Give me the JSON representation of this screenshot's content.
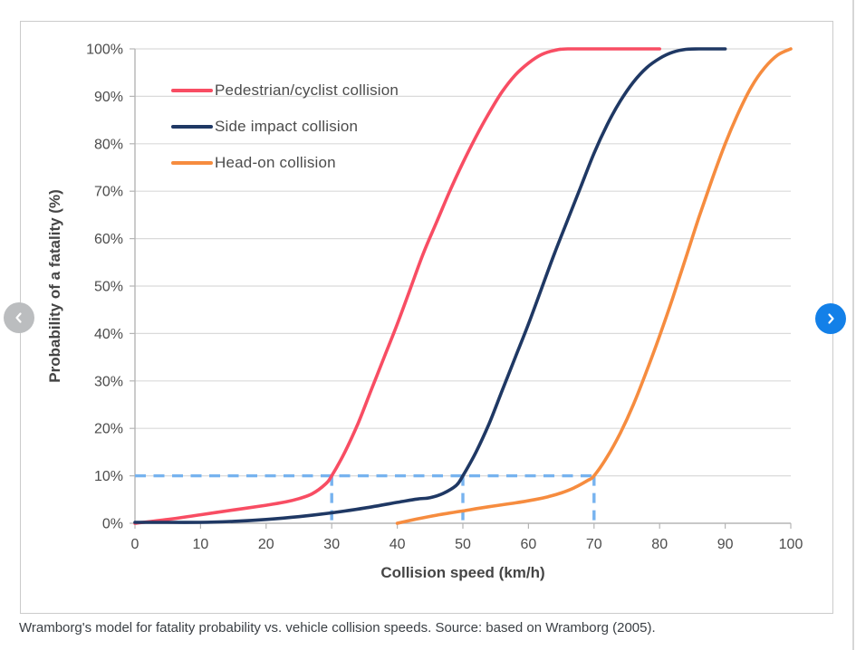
{
  "figure": {
    "caption": "Wramborg's model for fatality probability vs. vehicle collision speeds. Source: based on Wramborg (2005)."
  },
  "carousel": {
    "prev_icon": "chevron-left",
    "next_icon": "chevron-right",
    "prev_color": "#bbbdbf",
    "next_color": "#1380e8",
    "chevron_color": "#ffffff"
  },
  "palette": {
    "card_border": "#cbcbcb",
    "grid": "#dadada",
    "axis": "#b5b5b5",
    "tick_text": "#4c4c4c",
    "axis_title_text": "#454545",
    "guide_blue": "#77b3ef"
  },
  "chart_data": {
    "type": "line",
    "title": "",
    "xlabel": "Collision speed (km/h)",
    "ylabel": "Probability of a fatality (%)",
    "xlim": [
      0,
      100
    ],
    "ylim": [
      0,
      100
    ],
    "x_ticks": [
      0,
      10,
      20,
      30,
      40,
      50,
      60,
      70,
      80,
      90,
      100
    ],
    "x_tick_labels": [
      "0",
      "10",
      "20",
      "30",
      "40",
      "50",
      "60",
      "70",
      "80",
      "90",
      "100"
    ],
    "y_ticks": [
      0,
      10,
      20,
      30,
      40,
      50,
      60,
      70,
      80,
      90,
      100
    ],
    "y_tick_labels": [
      "0%",
      "10%",
      "20%",
      "30%",
      "40%",
      "50%",
      "60%",
      "70%",
      "80%",
      "90%",
      "100%"
    ],
    "grid": "horizontal",
    "legend_position": "inside-top-left",
    "series": [
      {
        "id": "pedestrian_cyclist",
        "name": "Pedestrian/cyclist collision",
        "color": "#f84d63",
        "points": [
          [
            0,
            0
          ],
          [
            5,
            0.8
          ],
          [
            10,
            1.8
          ],
          [
            15,
            2.8
          ],
          [
            20,
            3.8
          ],
          [
            23,
            4.5
          ],
          [
            25,
            5.2
          ],
          [
            27,
            6.2
          ],
          [
            29,
            8.2
          ],
          [
            30,
            10
          ],
          [
            32,
            15
          ],
          [
            34,
            21
          ],
          [
            36,
            28
          ],
          [
            38,
            35
          ],
          [
            40,
            42
          ],
          [
            42,
            49.5
          ],
          [
            44,
            57
          ],
          [
            46,
            63.5
          ],
          [
            48,
            70
          ],
          [
            50,
            76
          ],
          [
            52,
            81.5
          ],
          [
            54,
            86.5
          ],
          [
            56,
            91
          ],
          [
            58,
            94.5
          ],
          [
            60,
            97
          ],
          [
            62,
            98.8
          ],
          [
            64,
            99.7
          ],
          [
            66,
            100
          ],
          [
            72,
            100
          ],
          [
            80,
            100
          ]
        ]
      },
      {
        "id": "side_impact",
        "name": "Side impact collision",
        "color": "#1f3864",
        "points": [
          [
            0,
            0.2
          ],
          [
            5,
            0.2
          ],
          [
            10,
            0.2
          ],
          [
            15,
            0.4
          ],
          [
            20,
            0.8
          ],
          [
            25,
            1.4
          ],
          [
            30,
            2.2
          ],
          [
            35,
            3.2
          ],
          [
            40,
            4.4
          ],
          [
            43,
            5.1
          ],
          [
            45,
            5.4
          ],
          [
            47,
            6.3
          ],
          [
            49,
            8
          ],
          [
            50,
            10
          ],
          [
            52,
            15
          ],
          [
            54,
            21
          ],
          [
            56,
            28
          ],
          [
            58,
            35
          ],
          [
            60,
            42
          ],
          [
            62,
            49.5
          ],
          [
            64,
            57
          ],
          [
            66,
            64
          ],
          [
            68,
            71
          ],
          [
            70,
            78
          ],
          [
            72,
            84
          ],
          [
            74,
            89
          ],
          [
            76,
            93
          ],
          [
            78,
            96
          ],
          [
            80,
            98
          ],
          [
            82,
            99.3
          ],
          [
            84,
            99.9
          ],
          [
            86,
            100
          ],
          [
            90,
            100
          ]
        ]
      },
      {
        "id": "head_on",
        "name": "Head-on collision",
        "color": "#f68c3f",
        "points": [
          [
            40,
            0
          ],
          [
            43,
            0.9
          ],
          [
            46,
            1.7
          ],
          [
            50,
            2.6
          ],
          [
            54,
            3.5
          ],
          [
            58,
            4.3
          ],
          [
            61,
            5
          ],
          [
            63,
            5.6
          ],
          [
            65,
            6.4
          ],
          [
            67,
            7.5
          ],
          [
            69,
            9
          ],
          [
            70,
            10
          ],
          [
            72,
            14
          ],
          [
            74,
            19
          ],
          [
            76,
            25
          ],
          [
            78,
            32
          ],
          [
            80,
            39.5
          ],
          [
            82,
            47.5
          ],
          [
            84,
            56
          ],
          [
            86,
            64.5
          ],
          [
            88,
            72.5
          ],
          [
            90,
            80
          ],
          [
            92,
            86.5
          ],
          [
            94,
            92
          ],
          [
            96,
            96
          ],
          [
            98,
            98.7
          ],
          [
            100,
            100
          ]
        ]
      }
    ],
    "guides": {
      "color": "#77b3ef",
      "horizontal": {
        "y": 10,
        "x_from": 0,
        "x_to": 70
      },
      "verticals": [
        {
          "x": 30,
          "y_from": 0,
          "y_to": 10
        },
        {
          "x": 50,
          "y_from": 0,
          "y_to": 10
        },
        {
          "x": 70,
          "y_from": 0,
          "y_to": 10
        }
      ]
    }
  }
}
